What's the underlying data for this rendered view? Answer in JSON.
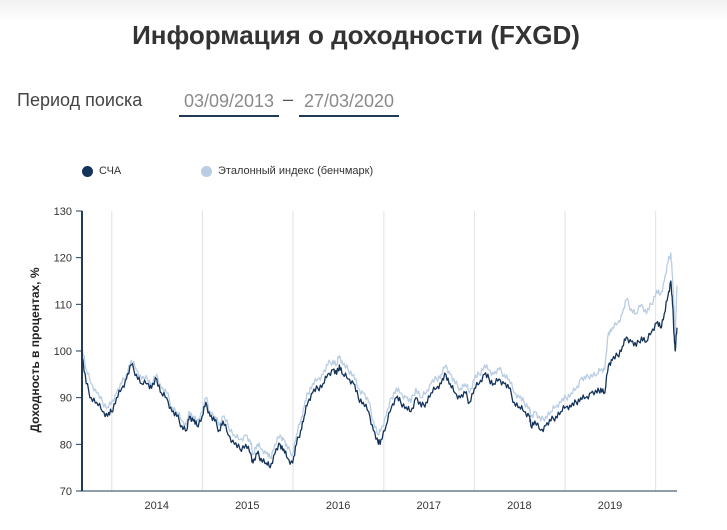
{
  "header": {
    "title": "Информация о доходности (FXGD)"
  },
  "period": {
    "label": "Период поиска",
    "from": "03/09/2013",
    "dash": "–",
    "to": "27/03/2020"
  },
  "colors": {
    "nav": "#13335b",
    "benchmark": "#b9cde3",
    "grid": "#e2e2e2",
    "axis": "#1f3b57"
  },
  "chart_data": {
    "type": "line",
    "title": "",
    "xlabel": "",
    "ylabel": "Доходность в процентах, %",
    "ylim": [
      70,
      130
    ],
    "xlim": [
      "2013-09-03",
      "2020-03-27"
    ],
    "yticks": [
      70,
      80,
      90,
      100,
      110,
      120,
      130
    ],
    "xticks": [
      {
        "label": "2014",
        "date": "2014-07-01"
      },
      {
        "label": "2015",
        "date": "2015-07-01"
      },
      {
        "label": "2016",
        "date": "2016-07-01"
      },
      {
        "label": "2017",
        "date": "2017-07-01"
      },
      {
        "label": "2018",
        "date": "2018-07-01"
      },
      {
        "label": "2019",
        "date": "2019-07-01"
      }
    ],
    "grid_lines": [
      "2014-01-01",
      "2015-01-01",
      "2016-01-01",
      "2017-01-01",
      "2018-01-01",
      "2019-01-01",
      "2020-01-01"
    ],
    "legend_position": "top-left",
    "series": [
      {
        "name": "СЧА",
        "x": [
          "2013-09-03",
          "2013-09-20",
          "2013-10-10",
          "2013-11-01",
          "2013-11-25",
          "2013-12-15",
          "2013-12-31",
          "2014-01-20",
          "2014-02-10",
          "2014-03-01",
          "2014-03-20",
          "2014-04-10",
          "2014-05-01",
          "2014-05-25",
          "2014-06-10",
          "2014-07-01",
          "2014-07-20",
          "2014-08-10",
          "2014-09-01",
          "2014-09-20",
          "2014-10-10",
          "2014-10-30",
          "2014-11-10",
          "2014-11-25",
          "2014-12-10",
          "2014-12-31",
          "2015-01-15",
          "2015-02-01",
          "2015-02-20",
          "2015-03-10",
          "2015-03-25",
          "2015-04-15",
          "2015-05-10",
          "2015-06-01",
          "2015-06-25",
          "2015-07-15",
          "2015-07-24",
          "2015-08-10",
          "2015-08-25",
          "2015-09-15",
          "2015-10-01",
          "2015-10-20",
          "2015-11-10",
          "2015-11-25",
          "2015-12-10",
          "2015-12-31",
          "2016-01-15",
          "2016-02-01",
          "2016-02-15",
          "2016-03-01",
          "2016-03-20",
          "2016-04-10",
          "2016-05-01",
          "2016-05-20",
          "2016-06-10",
          "2016-06-25",
          "2016-07-06",
          "2016-07-20",
          "2016-08-10",
          "2016-09-01",
          "2016-09-20",
          "2016-10-10",
          "2016-11-01",
          "2016-11-20",
          "2016-12-10",
          "2016-12-20",
          "2017-01-10",
          "2017-02-01",
          "2017-02-20",
          "2017-03-10",
          "2017-04-01",
          "2017-04-20",
          "2017-05-10",
          "2017-06-01",
          "2017-06-20",
          "2017-07-10",
          "2017-08-01",
          "2017-08-20",
          "2017-09-08",
          "2017-09-25",
          "2017-10-15",
          "2017-11-05",
          "2017-11-25",
          "2017-12-12",
          "2018-01-01",
          "2018-01-20",
          "2018-02-10",
          "2018-03-01",
          "2018-03-20",
          "2018-04-10",
          "2018-05-01",
          "2018-05-20",
          "2018-06-10",
          "2018-07-01",
          "2018-07-20",
          "2018-08-10",
          "2018-08-16",
          "2018-09-01",
          "2018-09-25",
          "2018-10-15",
          "2018-11-05",
          "2018-11-25",
          "2018-12-15",
          "2019-01-05",
          "2019-01-25",
          "2019-02-15",
          "2019-03-05",
          "2019-03-25",
          "2019-04-15",
          "2019-05-10",
          "2019-05-25",
          "2019-06-10",
          "2019-06-25",
          "2019-07-10",
          "2019-08-01",
          "2019-08-20",
          "2019-09-05",
          "2019-09-25",
          "2019-10-15",
          "2019-11-05",
          "2019-11-25",
          "2019-12-15",
          "2020-01-05",
          "2020-01-20",
          "2020-02-05",
          "2020-02-20",
          "2020-03-02",
          "2020-03-09",
          "2020-03-16",
          "2020-03-20",
          "2020-03-27"
        ],
        "y": [
          99,
          93,
          90,
          89,
          87,
          86,
          87,
          90,
          92,
          94,
          97,
          95,
          93,
          93,
          92,
          94,
          91,
          90,
          87,
          86,
          84,
          83,
          86,
          85,
          84,
          86,
          89,
          86,
          85,
          83,
          85,
          82,
          80,
          79,
          80,
          78,
          76,
          78,
          77,
          76,
          75,
          78,
          80,
          79,
          77,
          76,
          80,
          83,
          86,
          89,
          91,
          92,
          93,
          95,
          96,
          95,
          97,
          95,
          94,
          93,
          90,
          89,
          87,
          83,
          80,
          81,
          84,
          88,
          90,
          89,
          88,
          87,
          90,
          88,
          89,
          91,
          92,
          93,
          95,
          93,
          91,
          90,
          91,
          89,
          92,
          93,
          95,
          94,
          93,
          94,
          93,
          92,
          89,
          88,
          87,
          86,
          84,
          85,
          83,
          84,
          85,
          86,
          87,
          88,
          88,
          89,
          90,
          90,
          91,
          91,
          92,
          91,
          97,
          98,
          99,
          101,
          103,
          102,
          101,
          103,
          102,
          104,
          106,
          105,
          108,
          112,
          115,
          110,
          103,
          100,
          105
        ]
      },
      {
        "name": "Эталонный индекс (бенчмарк)",
        "x": [
          "2013-09-03",
          "2013-09-20",
          "2013-10-10",
          "2013-11-01",
          "2013-11-25",
          "2013-12-15",
          "2013-12-31",
          "2014-01-20",
          "2014-02-10",
          "2014-03-01",
          "2014-03-20",
          "2014-04-10",
          "2014-05-01",
          "2014-05-25",
          "2014-06-10",
          "2014-07-01",
          "2014-07-20",
          "2014-08-10",
          "2014-09-01",
          "2014-09-20",
          "2014-10-10",
          "2014-10-30",
          "2014-11-10",
          "2014-11-25",
          "2014-12-10",
          "2014-12-31",
          "2015-01-15",
          "2015-02-01",
          "2015-02-20",
          "2015-03-10",
          "2015-03-25",
          "2015-04-15",
          "2015-05-10",
          "2015-06-01",
          "2015-06-25",
          "2015-07-15",
          "2015-07-24",
          "2015-08-10",
          "2015-08-25",
          "2015-09-15",
          "2015-10-01",
          "2015-10-20",
          "2015-11-10",
          "2015-11-25",
          "2015-12-10",
          "2015-12-31",
          "2016-01-15",
          "2016-02-01",
          "2016-02-15",
          "2016-03-01",
          "2016-03-20",
          "2016-04-10",
          "2016-05-01",
          "2016-05-20",
          "2016-06-10",
          "2016-06-25",
          "2016-07-06",
          "2016-07-20",
          "2016-08-10",
          "2016-09-01",
          "2016-09-20",
          "2016-10-10",
          "2016-11-01",
          "2016-11-20",
          "2016-12-10",
          "2016-12-20",
          "2017-01-10",
          "2017-02-01",
          "2017-02-20",
          "2017-03-10",
          "2017-04-01",
          "2017-04-20",
          "2017-05-10",
          "2017-06-01",
          "2017-06-20",
          "2017-07-10",
          "2017-08-01",
          "2017-08-20",
          "2017-09-08",
          "2017-09-25",
          "2017-10-15",
          "2017-11-05",
          "2017-11-25",
          "2017-12-12",
          "2018-01-01",
          "2018-01-20",
          "2018-02-10",
          "2018-03-01",
          "2018-03-20",
          "2018-04-10",
          "2018-05-01",
          "2018-05-20",
          "2018-06-10",
          "2018-07-01",
          "2018-07-20",
          "2018-08-10",
          "2018-08-16",
          "2018-09-01",
          "2018-09-25",
          "2018-10-15",
          "2018-11-05",
          "2018-11-25",
          "2018-12-15",
          "2019-01-05",
          "2019-01-25",
          "2019-02-15",
          "2019-03-05",
          "2019-03-25",
          "2019-04-15",
          "2019-05-10",
          "2019-05-25",
          "2019-06-10",
          "2019-06-25",
          "2019-07-10",
          "2019-08-01",
          "2019-08-20",
          "2019-09-05",
          "2019-09-25",
          "2019-10-15",
          "2019-11-05",
          "2019-11-25",
          "2019-12-15",
          "2020-01-05",
          "2020-01-20",
          "2020-02-05",
          "2020-02-20",
          "2020-03-02",
          "2020-03-09",
          "2020-03-16",
          "2020-03-20",
          "2020-03-27"
        ],
        "y": [
          101,
          96,
          93,
          91,
          89,
          88,
          89,
          91,
          93,
          95,
          98,
          96,
          94,
          94,
          93,
          95,
          92,
          91,
          88,
          87,
          85,
          84,
          87,
          86,
          85,
          87,
          90,
          87,
          86,
          84,
          86,
          84,
          82,
          81,
          82,
          80,
          78,
          80,
          79,
          78,
          77,
          80,
          82,
          81,
          79,
          78,
          82,
          85,
          88,
          91,
          93,
          94,
          95,
          97,
          98,
          97,
          99,
          97,
          96,
          95,
          92,
          91,
          89,
          85,
          82,
          83,
          86,
          90,
          92,
          91,
          90,
          89,
          92,
          90,
          91,
          93,
          94,
          95,
          97,
          95,
          93,
          92,
          93,
          91,
          94,
          95,
          97,
          96,
          95,
          96,
          95,
          94,
          91,
          90,
          89,
          88,
          86,
          87,
          85,
          86,
          87,
          88,
          89,
          90,
          91,
          92,
          94,
          94,
          95,
          95,
          96,
          96,
          104,
          105,
          106,
          108,
          111,
          109,
          108,
          110,
          108,
          110,
          113,
          112,
          115,
          119,
          121,
          116,
          108,
          103,
          114
        ]
      }
    ]
  }
}
